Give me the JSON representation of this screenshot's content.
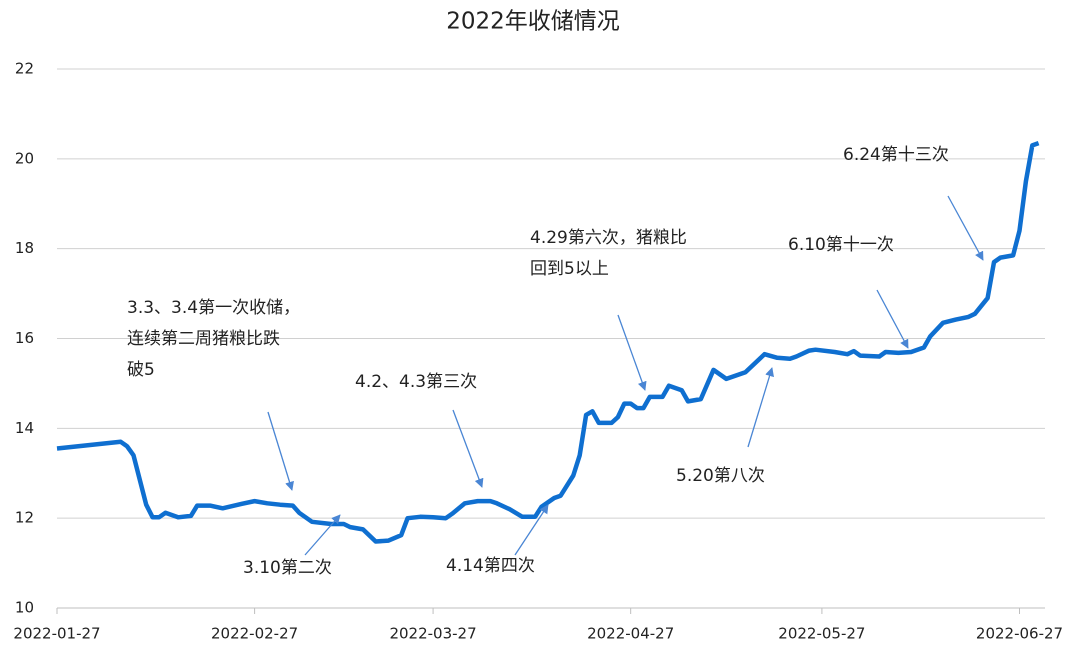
{
  "chart_data": {
    "type": "line",
    "title": "2022年收储情况",
    "series": [
      {
        "color": "#0f6fd0",
        "x": [
          "2022-01-27",
          "2022-02-06",
          "2022-02-07",
          "2022-02-08",
          "2022-02-10",
          "2022-02-11",
          "2022-02-12",
          "2022-02-13",
          "2022-02-15",
          "2022-02-17",
          "2022-02-18",
          "2022-02-20",
          "2022-02-22",
          "2022-02-25",
          "2022-02-27",
          "2022-03-01",
          "2022-03-03",
          "2022-03-05",
          "2022-03-06",
          "2022-03-08",
          "2022-03-11",
          "2022-03-13",
          "2022-03-14",
          "2022-03-16",
          "2022-03-18",
          "2022-03-20",
          "2022-03-22",
          "2022-03-23",
          "2022-03-25",
          "2022-03-27",
          "2022-03-29",
          "2022-03-30",
          "2022-04-01",
          "2022-04-03",
          "2022-04-05",
          "2022-04-06",
          "2022-04-08",
          "2022-04-10",
          "2022-04-12",
          "2022-04-13",
          "2022-04-15",
          "2022-04-16",
          "2022-04-18",
          "2022-04-19",
          "2022-04-20",
          "2022-04-21",
          "2022-04-22",
          "2022-04-24",
          "2022-04-25",
          "2022-04-26",
          "2022-04-27",
          "2022-04-28",
          "2022-04-29",
          "2022-04-30",
          "2022-05-02",
          "2022-05-03",
          "2022-05-05",
          "2022-05-06",
          "2022-05-08",
          "2022-05-10",
          "2022-05-12",
          "2022-05-15",
          "2022-05-18",
          "2022-05-20",
          "2022-05-22",
          "2022-05-23",
          "2022-05-25",
          "2022-05-26",
          "2022-05-29",
          "2022-05-31",
          "2022-06-01",
          "2022-06-02",
          "2022-06-05",
          "2022-06-06",
          "2022-06-08",
          "2022-06-10",
          "2022-06-12",
          "2022-06-13",
          "2022-06-15",
          "2022-06-17",
          "2022-06-19",
          "2022-06-20",
          "2022-06-22",
          "2022-06-23",
          "2022-06-24",
          "2022-06-26",
          "2022-06-27",
          "2022-06-28",
          "2022-06-29",
          "2022-06-30"
        ],
        "values": [
          13.55,
          13.7,
          13.6,
          13.4,
          12.3,
          12.02,
          12.02,
          12.12,
          12.02,
          12.05,
          12.28,
          12.28,
          12.22,
          12.32,
          12.38,
          12.33,
          12.3,
          12.28,
          12.12,
          11.92,
          11.87,
          11.87,
          11.8,
          11.75,
          11.48,
          11.5,
          11.62,
          12.0,
          12.03,
          12.02,
          12.0,
          12.1,
          12.33,
          12.38,
          12.38,
          12.33,
          12.2,
          12.03,
          12.03,
          12.25,
          12.45,
          12.5,
          12.95,
          13.4,
          14.3,
          14.38,
          14.12,
          14.12,
          14.25,
          14.55,
          14.55,
          14.45,
          14.45,
          14.7,
          14.7,
          14.95,
          14.85,
          14.6,
          14.65,
          15.3,
          15.1,
          15.25,
          15.65,
          15.57,
          15.55,
          15.6,
          15.73,
          15.75,
          15.7,
          15.65,
          15.72,
          15.62,
          15.6,
          15.7,
          15.68,
          15.7,
          15.8,
          16.05,
          16.35,
          16.42,
          16.48,
          16.55,
          16.9,
          17.7,
          17.8,
          17.85,
          18.4,
          19.5,
          20.3,
          20.35
        ]
      }
    ],
    "xlim": [
      "2022-01-27",
      "2022-07-01"
    ],
    "xticks": [
      "2022-01-27",
      "2022-02-27",
      "2022-03-27",
      "2022-04-27",
      "2022-05-27",
      "2022-06-27"
    ],
    "ylim": [
      10,
      22
    ],
    "yticks": [
      10,
      12,
      14,
      16,
      18,
      20,
      22
    ],
    "grid": true,
    "annotations": [
      {
        "text": [
          "3.3、3.4第一次收储，",
          "连续第二周猪粮比跌",
          "破5"
        ]
      },
      {
        "text": [
          "3.10第二次"
        ]
      },
      {
        "text": [
          "4.2、4.3第三次"
        ]
      },
      {
        "text": [
          "4.14第四次"
        ]
      },
      {
        "text": [
          "4.29第六次，猪粮比",
          "回到5以上"
        ]
      },
      {
        "text": [
          "5.20第八次"
        ]
      },
      {
        "text": [
          "6.10第十一次"
        ]
      },
      {
        "text": [
          "6.24第十三次"
        ]
      }
    ]
  }
}
